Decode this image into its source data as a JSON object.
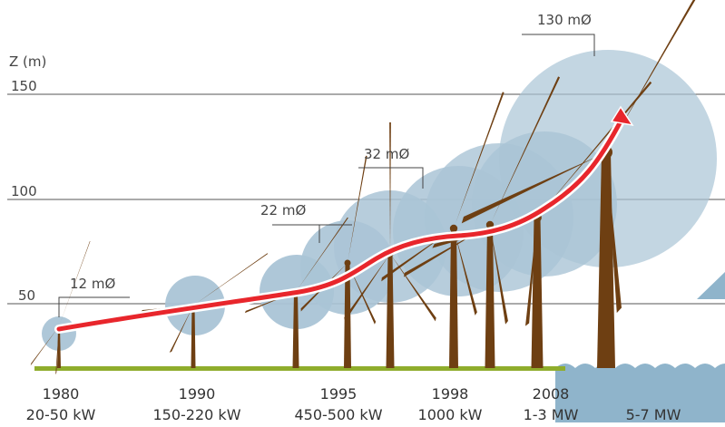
{
  "axis": {
    "label": "Z (m)",
    "ticks": [
      "150",
      "100",
      "50"
    ]
  },
  "diameters": [
    "12 mØ",
    "22 mØ",
    "32 mØ",
    "130 mØ"
  ],
  "eras": [
    {
      "year": "1980",
      "power": "20-50 kW"
    },
    {
      "year": "1990",
      "power": "150-220 kW"
    },
    {
      "year": "1995",
      "power": "450-500 kW"
    },
    {
      "year": "1998",
      "power": "1000 kW"
    },
    {
      "year": "2008",
      "power": "1-3 MW"
    },
    {
      "year": "",
      "power": "5-7 MW"
    }
  ],
  "colors": {
    "tower": "#6e3f12",
    "rotor_disc": "#aac4d6",
    "ground": "#8fad2c",
    "sea": "#8fb4cb",
    "trend_arrow": "#e8262c"
  }
}
